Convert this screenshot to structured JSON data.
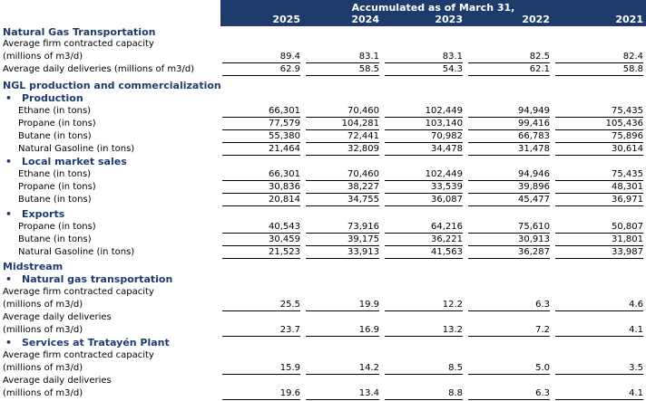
{
  "header": {
    "title": "Accumulated as of March 31,",
    "years": [
      "2025",
      "2024",
      "2023",
      "2022",
      "2021"
    ]
  },
  "rows": [
    {
      "type": "section",
      "label": "Natural Gas Transportation"
    },
    {
      "type": "data",
      "label": "Average firm contracted capacity",
      "label2": "(millions of m3/d)",
      "values": [
        "89.4",
        "83.1",
        "83.1",
        "82.5",
        "82.4"
      ]
    },
    {
      "type": "data",
      "label": "Average daily deliveries (millions of m3/d)",
      "values": [
        "62.9",
        "58.5",
        "54.3",
        "62.1",
        "58.8"
      ]
    },
    {
      "type": "section",
      "label": "NGL production and commercialization"
    },
    {
      "type": "sub",
      "bullet": "•",
      "label": "Production"
    },
    {
      "type": "data",
      "indent": true,
      "label": "Ethane (in tons)",
      "values": [
        "66,301",
        "70,460",
        "102,449",
        "94,949",
        "75,435"
      ]
    },
    {
      "type": "data",
      "indent": true,
      "label": "Propane (in tons)",
      "values": [
        "77,579",
        "104,281",
        "103,140",
        "99,416",
        "105,436"
      ]
    },
    {
      "type": "data",
      "indent": true,
      "label": "Butane (in tons)",
      "values": [
        "55,380",
        "72,441",
        "70,982",
        "66,783",
        "75,896"
      ]
    },
    {
      "type": "data",
      "indent": true,
      "label": "Natural Gasoline (in tons)",
      "values": [
        "21,464",
        "32,809",
        "34,478",
        "31,478",
        "30,614"
      ]
    },
    {
      "type": "sub",
      "bullet": "•",
      "label": "Local market sales"
    },
    {
      "type": "data",
      "indent": true,
      "label": "Ethane (in tons)",
      "values": [
        "66,301",
        "70,460",
        "102,449",
        "94,946",
        "75,435"
      ]
    },
    {
      "type": "data",
      "indent": true,
      "label": "Propane (in tons)",
      "values": [
        "30,836",
        "38,227",
        "33,539",
        "39,896",
        "48,301"
      ]
    },
    {
      "type": "data",
      "indent": true,
      "label": "Butane (in tons)",
      "values": [
        "20,814",
        "34,755",
        "36,087",
        "45,477",
        "36,971"
      ]
    },
    {
      "type": "sub",
      "bullet": "•",
      "label": "Exports"
    },
    {
      "type": "data",
      "indent": true,
      "label": "Propane (in tons)",
      "values": [
        "40,543",
        "73,916",
        "64,216",
        "75,610",
        "50,807"
      ]
    },
    {
      "type": "data",
      "indent": true,
      "label": "Butane (in tons)",
      "values": [
        "30,459",
        "39,175",
        "36,221",
        "30,913",
        "31,801"
      ]
    },
    {
      "type": "data",
      "indent": true,
      "label": "Natural Gasoline (in tons)",
      "values": [
        "21,523",
        "33,913",
        "41,563",
        "36,287",
        "33,987"
      ]
    },
    {
      "type": "section",
      "label": "Midstream"
    },
    {
      "type": "sub",
      "bullet": "•",
      "label": "Natural gas transportation"
    },
    {
      "type": "data",
      "label": "Average firm contracted capacity",
      "label2": "(millions of m3/d)",
      "values": [
        "25.5",
        "19.9",
        "12.2",
        "6.3",
        "4.6"
      ]
    },
    {
      "type": "data",
      "label": "Average daily deliveries",
      "label2": "(millions of m3/d)",
      "values": [
        "23.7",
        "16.9",
        "13.2",
        "7.2",
        "4.1"
      ]
    },
    {
      "type": "sub",
      "bullet": "•",
      "label": "Services at Tratayén Plant"
    },
    {
      "type": "data",
      "label": "Average firm contracted capacity",
      "label2": "(millions of m3/d)",
      "values": [
        "15.9",
        "14.2",
        "8.5",
        "5.0",
        "3.5"
      ]
    },
    {
      "type": "data",
      "label": "Average daily deliveries",
      "label2": "(millions of m3/d)",
      "values": [
        "19.6",
        "13.4",
        "8.8",
        "6.3",
        "4.1"
      ]
    }
  ]
}
